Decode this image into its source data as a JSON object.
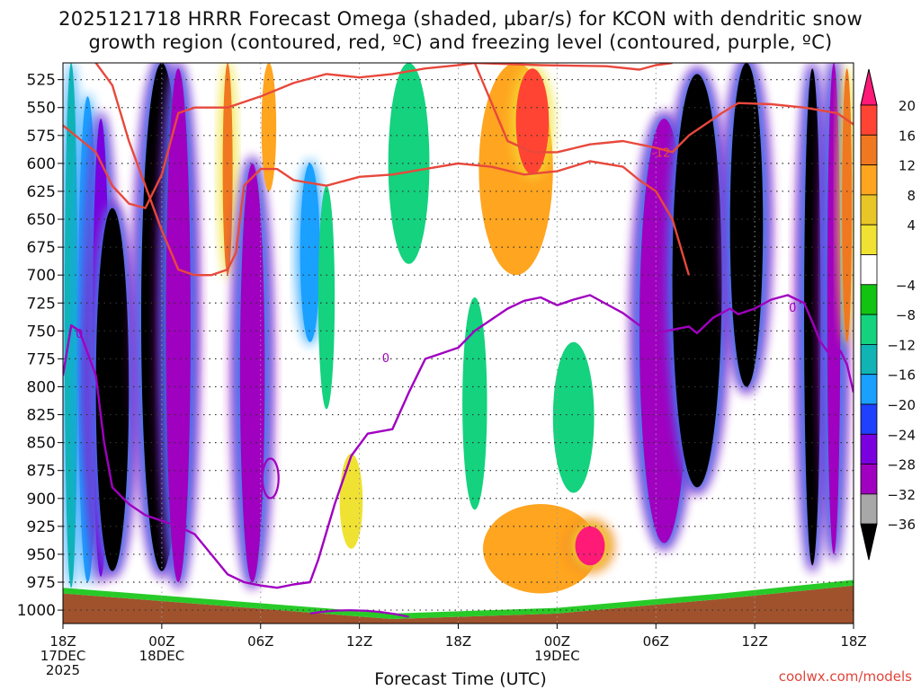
{
  "title_line1": "2025121718 HRRR Forecast Omega (shaded, µbar/s) for KCON with dendritic snow",
  "title_line2": "growth region (contoured, red, ºC) and freezing level (contoured, purple, ºC)",
  "credit": "coolwx.com/models",
  "chart_data": {
    "type": "heatmap",
    "title": "2025121718 HRRR Forecast Omega (shaded, µbar/s) for KCON with dendritic snow growth region (contoured, red, ºC) and freezing level (contoured, purple, ºC)",
    "xlabel": "Forecast Time (UTC)",
    "ylabel": "",
    "x_ticks": [
      {
        "h": 0,
        "l1": "18Z",
        "l2": "17DEC",
        "l3": "2025"
      },
      {
        "h": 6,
        "l1": "00Z",
        "l2": "18DEC",
        "l3": ""
      },
      {
        "h": 12,
        "l1": "06Z",
        "l2": "",
        "l3": ""
      },
      {
        "h": 18,
        "l1": "12Z",
        "l2": "",
        "l3": ""
      },
      {
        "h": 24,
        "l1": "18Z",
        "l2": "",
        "l3": ""
      },
      {
        "h": 30,
        "l1": "00Z",
        "l2": "19DEC",
        "l3": ""
      },
      {
        "h": 36,
        "l1": "06Z",
        "l2": "",
        "l3": ""
      },
      {
        "h": 42,
        "l1": "12Z",
        "l2": "",
        "l3": ""
      },
      {
        "h": 48,
        "l1": "18Z",
        "l2": "",
        "l3": ""
      }
    ],
    "y_ticks": [
      525,
      550,
      575,
      600,
      625,
      650,
      675,
      700,
      725,
      750,
      775,
      800,
      825,
      850,
      875,
      900,
      925,
      950,
      975,
      1000
    ],
    "xlim": [
      0,
      48
    ],
    "ylim": [
      1012,
      510
    ],
    "colorbar": {
      "levels": [
        20,
        16,
        12,
        8,
        4,
        -4,
        -8,
        -12,
        -16,
        -20,
        -24,
        -28,
        -32,
        -36
      ],
      "labels": [
        "20",
        "16",
        "12",
        "8",
        "4",
        "−4",
        "−8",
        "−12",
        "−16",
        "−20",
        "−24",
        "−28",
        "−32",
        "−36"
      ],
      "colors": [
        "#ff1a78",
        "#ff4433",
        "#f07820",
        "#ffa520",
        "#e8c628",
        "#f0e232",
        "#ffffff",
        "#11c411",
        "#14d27e",
        "#10b4b4",
        "#1aa0ff",
        "#2040ff",
        "#7a00e0",
        "#a000c0",
        "#a8a8a8",
        "#000000"
      ]
    },
    "omega_columns": [
      {
        "h": 0.5,
        "w": 0.8,
        "value": -12,
        "p_top": 510,
        "p_bot": 980
      },
      {
        "h": 1.5,
        "w": 1.2,
        "value": -16,
        "p_top": 540,
        "p_bot": 975
      },
      {
        "h": 2.3,
        "w": 1.0,
        "value": -24,
        "p_top": 560,
        "p_bot": 970
      },
      {
        "h": 3.0,
        "w": 2.0,
        "value": -36,
        "p_top": 640,
        "p_bot": 965
      },
      {
        "h": 6.0,
        "w": 2.5,
        "value": -36,
        "p_top": 510,
        "p_bot": 965
      },
      {
        "h": 7.0,
        "w": 1.5,
        "value": -28,
        "p_top": 515,
        "p_bot": 975
      },
      {
        "h": 10.0,
        "w": 0.6,
        "value": 12,
        "p_top": 510,
        "p_bot": 700
      },
      {
        "h": 11.5,
        "w": 1.5,
        "value": -28,
        "p_top": 600,
        "p_bot": 975
      },
      {
        "h": 12.5,
        "w": 0.9,
        "value": 8,
        "p_top": 510,
        "p_bot": 625
      },
      {
        "h": 15.0,
        "w": 1.2,
        "value": -16,
        "p_top": 600,
        "p_bot": 760
      },
      {
        "h": 16.0,
        "w": 1.0,
        "value": -8,
        "p_top": 620,
        "p_bot": 820
      },
      {
        "h": 17.5,
        "w": 1.4,
        "value": 4,
        "p_top": 860,
        "p_bot": 945
      },
      {
        "h": 21.0,
        "w": 2.5,
        "value": -8,
        "p_top": 510,
        "p_bot": 690
      },
      {
        "h": 25.0,
        "w": 1.5,
        "value": -8,
        "p_top": 720,
        "p_bot": 910
      },
      {
        "h": 27.5,
        "w": 4.5,
        "value": 8,
        "p_top": 510,
        "p_bot": 700
      },
      {
        "h": 28.5,
        "w": 2.0,
        "value": 16,
        "p_top": 515,
        "p_bot": 610
      },
      {
        "h": 31.0,
        "w": 2.5,
        "value": -8,
        "p_top": 760,
        "p_bot": 895
      },
      {
        "h": 29.0,
        "w": 7.0,
        "value": 8,
        "p_top": 905,
        "p_bot": 985
      },
      {
        "h": 32.0,
        "w": 1.8,
        "value": 20,
        "p_top": 925,
        "p_bot": 960
      },
      {
        "h": 36.5,
        "w": 3.0,
        "value": -28,
        "p_top": 560,
        "p_bot": 940
      },
      {
        "h": 38.5,
        "w": 3.0,
        "value": -36,
        "p_top": 520,
        "p_bot": 890
      },
      {
        "h": 41.5,
        "w": 2.0,
        "value": -36,
        "p_top": 510,
        "p_bot": 800
      },
      {
        "h": 45.5,
        "w": 1.0,
        "value": -36,
        "p_top": 515,
        "p_bot": 960
      },
      {
        "h": 46.8,
        "w": 0.8,
        "value": -28,
        "p_top": 510,
        "p_bot": 950
      },
      {
        "h": 47.6,
        "w": 0.6,
        "value": 12,
        "p_top": 515,
        "p_bot": 760
      }
    ],
    "dgz_contours": [
      {
        "label": "-12",
        "points": [
          [
            0,
            566
          ],
          [
            1,
            578
          ],
          [
            2,
            590
          ],
          [
            3,
            620
          ],
          [
            4,
            636
          ],
          [
            5,
            640
          ],
          [
            6,
            610
          ],
          [
            7,
            555
          ],
          [
            8,
            550
          ],
          [
            10,
            550
          ],
          [
            12,
            540
          ],
          [
            14,
            528
          ],
          [
            16,
            520
          ],
          [
            18,
            523
          ],
          [
            20,
            520
          ],
          [
            22,
            515
          ],
          [
            24,
            512
          ],
          [
            25,
            510
          ],
          [
            29,
            512
          ],
          [
            33,
            513
          ],
          [
            35,
            516
          ],
          [
            36,
            512
          ],
          [
            37,
            510
          ]
        ]
      },
      {
        "label": "-12",
        "points": [
          [
            25,
            510
          ],
          [
            27,
            580
          ],
          [
            28.5,
            590
          ],
          [
            30,
            590
          ],
          [
            32,
            583
          ],
          [
            34,
            580
          ],
          [
            36,
            586
          ],
          [
            37,
            590
          ],
          [
            38,
            575
          ],
          [
            40,
            555
          ],
          [
            41,
            546
          ],
          [
            43,
            547
          ],
          [
            45,
            550
          ],
          [
            47,
            555
          ],
          [
            48,
            565
          ]
        ]
      },
      {
        "label": "",
        "points": [
          [
            2,
            510
          ],
          [
            3,
            530
          ],
          [
            4,
            580
          ],
          [
            5,
            620
          ],
          [
            6,
            660
          ],
          [
            7,
            695
          ],
          [
            8,
            700
          ],
          [
            9,
            700
          ],
          [
            10,
            695
          ],
          [
            10.5,
            680
          ],
          [
            11,
            620
          ],
          [
            12,
            605
          ],
          [
            13,
            605
          ],
          [
            14,
            615
          ],
          [
            16,
            620
          ],
          [
            18,
            612
          ],
          [
            20,
            610
          ],
          [
            22,
            605
          ],
          [
            24,
            600
          ],
          [
            26,
            603
          ],
          [
            28,
            610
          ],
          [
            30,
            607
          ],
          [
            32,
            598
          ],
          [
            34,
            603
          ],
          [
            35,
            615
          ],
          [
            36,
            625
          ],
          [
            37,
            650
          ],
          [
            38,
            700
          ]
        ]
      }
    ],
    "freezing_level": {
      "label": "0",
      "points": [
        [
          0,
          790
        ],
        [
          0.5,
          745
        ],
        [
          1,
          750
        ],
        [
          1.5,
          770
        ],
        [
          2,
          790
        ],
        [
          2.5,
          850
        ],
        [
          3,
          890
        ],
        [
          4,
          905
        ],
        [
          5,
          915
        ],
        [
          6,
          920
        ],
        [
          7,
          925
        ],
        [
          8,
          932
        ],
        [
          9,
          950
        ],
        [
          10,
          968
        ],
        [
          11,
          975
        ],
        [
          12,
          978
        ],
        [
          13,
          980
        ],
        [
          14,
          977
        ],
        [
          15,
          975
        ],
        [
          15.5,
          955
        ],
        [
          16.5,
          905
        ],
        [
          17.5,
          862
        ],
        [
          18.5,
          842
        ],
        [
          20,
          838
        ],
        [
          21,
          805
        ],
        [
          22,
          775
        ],
        [
          23,
          770
        ],
        [
          24,
          765
        ],
        [
          25,
          750
        ],
        [
          26,
          740
        ],
        [
          27,
          730
        ],
        [
          28,
          723
        ],
        [
          29,
          720
        ],
        [
          30,
          727
        ],
        [
          31,
          722
        ],
        [
          32,
          718
        ],
        [
          33,
          726
        ],
        [
          34,
          734
        ],
        [
          35,
          745
        ],
        [
          36,
          752
        ],
        [
          37,
          749
        ],
        [
          38,
          746
        ],
        [
          38.5,
          752
        ],
        [
          39.5,
          738
        ],
        [
          40.5,
          730
        ],
        [
          41,
          735
        ],
        [
          42,
          730
        ],
        [
          43,
          722
        ],
        [
          44,
          718
        ],
        [
          45,
          725
        ],
        [
          45.5,
          742
        ],
        [
          46,
          760
        ],
        [
          46.5,
          770
        ],
        [
          47.2,
          768
        ],
        [
          47.6,
          780
        ],
        [
          48,
          805
        ]
      ]
    },
    "ground": {
      "pressure_left": 985,
      "pressure_right": 978
    }
  }
}
